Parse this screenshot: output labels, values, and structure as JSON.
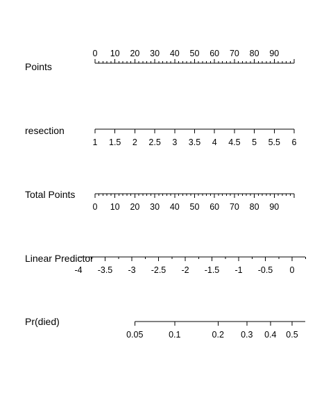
{
  "chart_data": {
    "type": "nomogram",
    "rows": [
      {
        "label": "Points",
        "range": [
          0,
          100
        ],
        "major_ticks": [
          0,
          10,
          20,
          30,
          40,
          50,
          60,
          70,
          80,
          90,
          100
        ],
        "labels": [
          0,
          10,
          20,
          30,
          40,
          50,
          60,
          70,
          80,
          90
        ],
        "minor_step": 2,
        "label_side": "above"
      },
      {
        "label": "resection",
        "range": [
          1,
          6
        ],
        "major_ticks": [
          1,
          1.5,
          2,
          2.5,
          3,
          3.5,
          4,
          4.5,
          5,
          5.5,
          6
        ],
        "labels": [
          1,
          1.5,
          2,
          2.5,
          3,
          3.5,
          4,
          4.5,
          5,
          5.5,
          6
        ],
        "minor_step": null,
        "label_side": "below"
      },
      {
        "label": "Total Points",
        "range": [
          0,
          100
        ],
        "major_ticks": [
          0,
          10,
          20,
          30,
          40,
          50,
          60,
          70,
          80,
          90,
          100
        ],
        "labels": [
          0,
          10,
          20,
          30,
          40,
          50,
          60,
          70,
          80,
          90
        ],
        "minor_step": 2,
        "label_side": "below"
      },
      {
        "label": "Linear Predictor",
        "range": [
          -4,
          0.2
        ],
        "major_ticks": [
          -4,
          -3.5,
          -3,
          -2.5,
          -2,
          -1.5,
          -1,
          -0.5,
          0
        ],
        "labels": [
          -4,
          -3.5,
          -3,
          -2.5,
          -2,
          -1.5,
          -1,
          -0.5,
          0
        ],
        "minor_step": 0.25,
        "label_side": "below"
      },
      {
        "label": "Pr(died)",
        "range": [
          0.05,
          0.55
        ],
        "scale": "logit",
        "major_ticks": [
          0.05,
          0.1,
          0.2,
          0.3,
          0.4,
          0.5
        ],
        "labels": [
          0.05,
          0.1,
          0.2,
          0.3,
          0.4,
          0.5
        ],
        "minor_step": null,
        "label_side": "below"
      }
    ]
  }
}
